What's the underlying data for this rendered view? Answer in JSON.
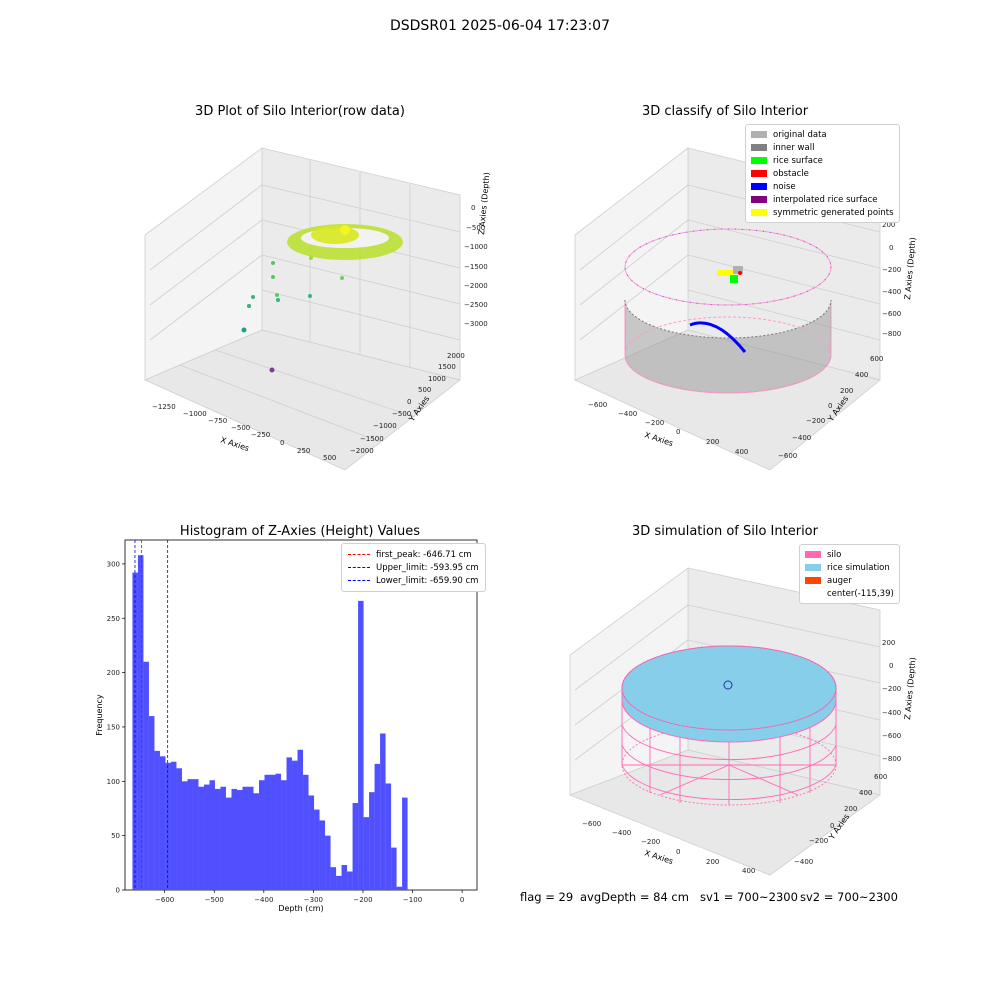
{
  "suptitle": "DSDSR01 2025-06-04 17:23:07",
  "panels": {
    "raw": {
      "title": "3D Plot of Silo Interior(row data)",
      "xlabel": "X Axies",
      "ylabel": "Y Axies",
      "zlabel": "Z Axies (Depth)",
      "xticks": [
        "−1250",
        "−1000",
        "−750",
        "−500",
        "−250",
        "0",
        "250",
        "500"
      ],
      "yticks": [
        "2000",
        "1500",
        "1000",
        "500",
        "0",
        "−500",
        "−1000",
        "−1500",
        "−2000"
      ],
      "zticks": [
        "0",
        "−500",
        "−1000",
        "−1500",
        "−2000",
        "−2500",
        "−3000"
      ]
    },
    "classify": {
      "title": "3D classify of Silo Interior",
      "xlabel": "X Axies",
      "ylabel": "Y Axies",
      "zlabel": "Z Axies (Depth)",
      "xticks": [
        "−600",
        "−400",
        "−200",
        "0",
        "200",
        "400"
      ],
      "yticks": [
        "600",
        "400",
        "200",
        "0",
        "−200",
        "−400",
        "−600"
      ],
      "zticks": [
        "200",
        "0",
        "−200",
        "−400",
        "−600",
        "−800"
      ],
      "legend": [
        {
          "label": "original data",
          "color": "#b0b0b0"
        },
        {
          "label": "inner wall",
          "color": "#808080"
        },
        {
          "label": "rice surface",
          "color": "#00ff00"
        },
        {
          "label": "obstacle",
          "color": "#ff0000"
        },
        {
          "label": "noise",
          "color": "#0000ff"
        },
        {
          "label": "interpolated rice surface",
          "color": "#800080"
        },
        {
          "label": "symmetric generated points",
          "color": "#ffff00"
        }
      ]
    },
    "histogram": {
      "title": "Histogram of Z-Axies (Height) Values",
      "legend": [
        {
          "label": "first_peak: -646.71 cm",
          "color": "#ff0000"
        },
        {
          "label": "Upper_limit: -593.95 cm",
          "color": "#0000ff"
        },
        {
          "label": "Lower_limit: -659.90 cm",
          "color": "#0000ff"
        }
      ]
    },
    "simulation": {
      "title": "3D simulation of Silo Interior",
      "xlabel": "X Axies",
      "ylabel": "Y Axies",
      "zlabel": "Z Axies (Depth)",
      "xticks": [
        "−600",
        "−400",
        "−200",
        "0",
        "200",
        "400"
      ],
      "yticks": [
        "600",
        "400",
        "200",
        "0",
        "−200",
        "−400"
      ],
      "zticks": [
        "200",
        "0",
        "−200",
        "−400",
        "−600",
        "−800"
      ],
      "legend": [
        {
          "label": "silo",
          "color": "#ff69b4"
        },
        {
          "label": "rice simulation",
          "color": "#87ceeb"
        },
        {
          "label": "auger",
          "color": "#ff4500"
        },
        {
          "label": "center(-115,39)",
          "color": ""
        }
      ]
    }
  },
  "footer": {
    "flag": "flag = 29",
    "avg": "avgDepth = 84 cm",
    "sv1": "sv1 = 700~2300",
    "sv2": "sv2 = 700~2300"
  },
  "chart_data": {
    "type": "bar",
    "title": "Histogram of Z-Axies (Height) Values",
    "xlabel": "Depth (cm)",
    "ylabel": "Frequency",
    "xlim": [
      -680,
      30
    ],
    "ylim": [
      0,
      322
    ],
    "xticks": [
      -600,
      -500,
      -400,
      -300,
      -200,
      -100,
      0
    ],
    "yticks": [
      0,
      50,
      100,
      150,
      200,
      250,
      300
    ],
    "bin_start": -665,
    "bin_width": 11.1,
    "values": [
      292,
      308,
      210,
      160,
      128,
      123,
      117,
      118,
      112,
      100,
      102,
      102,
      95,
      97,
      101,
      93,
      95,
      85,
      93,
      92,
      95,
      95,
      89,
      101,
      106,
      106,
      107,
      101,
      122,
      119,
      129,
      106,
      87,
      74,
      64,
      50,
      21,
      13,
      23,
      17,
      80,
      266,
      67,
      90,
      116,
      144,
      98,
      39,
      3,
      85
    ],
    "bar_color": "#5050ff",
    "vlines": [
      {
        "name": "first_peak",
        "x": -646.71,
        "color": "#ff0000"
      },
      {
        "name": "Upper_limit",
        "x": -593.95,
        "color": "#0000ff"
      },
      {
        "name": "Lower_limit",
        "x": -659.9,
        "color": "#0000ff"
      }
    ]
  }
}
